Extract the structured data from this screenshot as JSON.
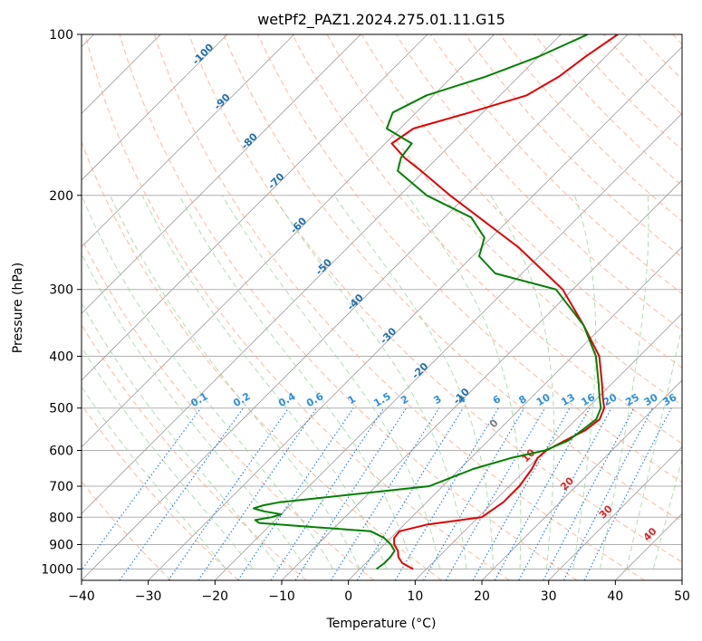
{
  "chart_data": {
    "type": "line",
    "title": "wetPf2_PAZ1.2024.275.01.11.G15",
    "xlabel": "Temperature (°C)",
    "ylabel": "Pressure (hPa)",
    "xlim": [
      -40,
      50
    ],
    "ylim": [
      1050,
      100
    ],
    "y_scale": "log",
    "x_ticks": [
      -40,
      -30,
      -20,
      -10,
      0,
      10,
      20,
      30,
      40,
      50
    ],
    "x_tick_labels": [
      "−40",
      "−30",
      "−20",
      "−10",
      "0",
      "10",
      "20",
      "30",
      "40",
      "50"
    ],
    "y_ticks": [
      100,
      200,
      300,
      400,
      500,
      600,
      700,
      800,
      900,
      1000
    ],
    "y_tick_labels": [
      "100",
      "200",
      "300",
      "400",
      "500",
      "600",
      "700",
      "800",
      "900",
      "1000"
    ],
    "grid": true,
    "skew_deg": 45,
    "series": [
      {
        "color": "#e00000",
        "pressure": [
          1000,
          975,
          950,
          925,
          900,
          875,
          850,
          825,
          800,
          750,
          700,
          650,
          620,
          600,
          575,
          550,
          525,
          500,
          475,
          450,
          400,
          350,
          300,
          250,
          200,
          180,
          170,
          160,
          150,
          140,
          130,
          120,
          110,
          100
        ],
        "values": [
          8.0,
          5.5,
          4.0,
          3.0,
          1.5,
          0.5,
          0.3,
          3.5,
          10.5,
          11.5,
          11.5,
          10.8,
          10.0,
          10.2,
          11.5,
          13.0,
          13.5,
          12.5,
          10.5,
          8.5,
          4.0,
          -3.0,
          -11.5,
          -24.5,
          -42.5,
          -50.5,
          -55.0,
          -59.0,
          -58.0,
          -52.0,
          -46.0,
          -44.0,
          -43.0,
          -41.5
        ]
      },
      {
        "color": "#008000",
        "pressure": [
          1000,
          975,
          950,
          925,
          900,
          875,
          850,
          830,
          820,
          810,
          800,
          790,
          780,
          770,
          760,
          750,
          700,
          650,
          620,
          600,
          575,
          550,
          525,
          500,
          475,
          450,
          400,
          350,
          300,
          280,
          260,
          240,
          220,
          200,
          180,
          170,
          160,
          150,
          140,
          130,
          120,
          110,
          100
        ],
        "values": [
          2.5,
          2.8,
          2.8,
          2.5,
          1.0,
          -1.0,
          -4.0,
          -16.0,
          -22.0,
          -23.0,
          -21.0,
          -20.0,
          -23.0,
          -25.0,
          -24.0,
          -22.0,
          -2.0,
          2.0,
          6.0,
          10.0,
          12.0,
          12.5,
          13.0,
          12.0,
          10.0,
          8.0,
          3.5,
          -3.0,
          -12.5,
          -24.0,
          -29.0,
          -31.0,
          -36.0,
          -46.0,
          -54.0,
          -55.5,
          -56.0,
          -62.0,
          -63.5,
          -61.0,
          -55.0,
          -50.0,
          -46.0
        ]
      }
    ],
    "mixing_ratio_labels": [
      "0.1",
      "0.2",
      "0.4",
      "0.6",
      "1",
      "1.5",
      "2",
      "3",
      "4",
      "6",
      "8",
      "10",
      "13",
      "16",
      "20",
      "25",
      "30",
      "36"
    ],
    "dry_adiabat_labels": [
      "-100",
      "-90",
      "-80",
      "-70",
      "-60",
      "-50",
      "-40",
      "-30",
      "-20",
      "-10"
    ],
    "moist_adiabat_labels": [
      "0",
      "10",
      "20",
      "30",
      "40"
    ]
  },
  "colors": {
    "temperature_line": "#e00000",
    "dewpoint_line": "#008000",
    "dry_adiabat": "#f4a582",
    "moist_adiabat": "#9fd49f",
    "mixing_ratio": "#1f77d4",
    "isotherm": "#888888",
    "dry_adiabat_label": "#1f6fb0",
    "moist_adiabat_label": "#d62728",
    "mixing_label": "#2a8fe0"
  }
}
